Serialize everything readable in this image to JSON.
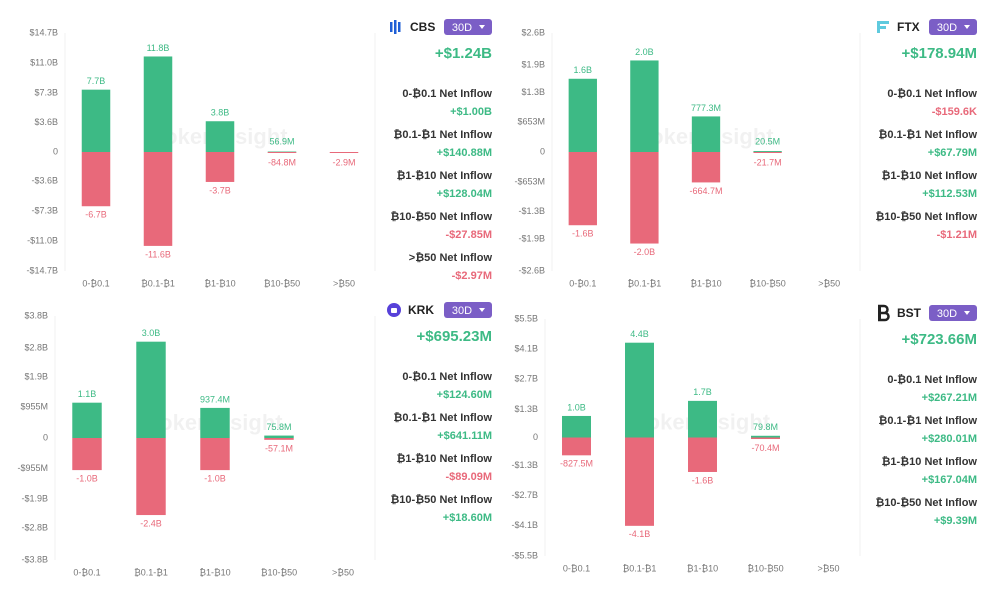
{
  "watermark": "TokenInsight",
  "chart_data": [
    {
      "type": "bar",
      "exchange": "CBS",
      "timeframe": "30D",
      "total": "+$1.24B",
      "items": [
        {
          "label": "0-₿0.1 Net Inflow",
          "value": "+$1.00B"
        },
        {
          "label": "₿0.1-₿1 Net Inflow",
          "value": "+$140.88M"
        },
        {
          "label": "₿1-₿10 Net Inflow",
          "value": "+$128.04M"
        },
        {
          "label": "₿10-₿50 Net Inflow",
          "value": "-$27.85M"
        },
        {
          "label": ">₿50 Net Inflow",
          "value": "-$2.97M"
        }
      ],
      "categories": [
        "0-₿0.1",
        "₿0.1-₿1",
        "₿1-₿10",
        "₿10-₿50",
        ">₿50"
      ],
      "series": [
        {
          "color": "#3dba85",
          "values": [
            7700000000,
            11800000000,
            3800000000,
            56900000,
            null
          ],
          "value_labels": [
            "7.7B",
            "11.8B",
            "3.8B",
            "56.9M",
            null
          ]
        },
        {
          "color": "#e8697a",
          "values": [
            -6700000000,
            -11600000000,
            -3700000000,
            -84800000,
            -2900000
          ],
          "value_labels": [
            "-6.7B",
            "-11.6B",
            "-3.7B",
            "-84.8M",
            "-2.9M"
          ]
        }
      ],
      "ylim": [
        -14700000000,
        14700000000
      ],
      "yticks": [
        {
          "value": 14700000000,
          "label": "$14.7B"
        },
        {
          "value": 11000000000,
          "label": "$11.0B"
        },
        {
          "value": 7300000000,
          "label": "$7.3B"
        },
        {
          "value": 3600000000,
          "label": "$3.6B"
        },
        0,
        {
          "value": -3600000000,
          "label": "-$3.6B"
        },
        {
          "value": -7300000000,
          "label": "-$7.3B"
        },
        {
          "value": -11000000000,
          "label": "-$11.0B"
        },
        {
          "value": -14700000000,
          "label": "-$14.7B"
        }
      ],
      "grid": false
    },
    {
      "type": "bar",
      "exchange": "FTX",
      "timeframe": "30D",
      "total": "+$178.94M",
      "items": [
        {
          "label": "0-₿0.1 Net Inflow",
          "value": "-$159.6K"
        },
        {
          "label": "₿0.1-₿1 Net Inflow",
          "value": "+$67.79M"
        },
        {
          "label": "₿1-₿10 Net Inflow",
          "value": "+$112.53M"
        },
        {
          "label": "₿10-₿50 Net Inflow",
          "value": "-$1.21M"
        }
      ],
      "categories": [
        "0-₿0.1",
        "₿0.1-₿1",
        "₿1-₿10",
        "₿10-₿50",
        ">₿50"
      ],
      "series": [
        {
          "color": "#3dba85",
          "values": [
            1600000000,
            2000000000,
            777300000,
            20500000,
            null
          ],
          "value_labels": [
            "1.6B",
            "2.0B",
            "777.3M",
            "20.5M",
            null
          ]
        },
        {
          "color": "#e8697a",
          "values": [
            -1600000000,
            -2000000000,
            -664700000,
            -21700000,
            null
          ],
          "value_labels": [
            "-1.6B",
            "-2.0B",
            "-664.7M",
            "-21.7M",
            null
          ]
        }
      ],
      "ylim": [
        -2600000000,
        2600000000
      ],
      "yticks": [
        {
          "value": 2600000000,
          "label": "$2.6B"
        },
        {
          "value": 1900000000,
          "label": "$1.9B"
        },
        {
          "value": 1300000000,
          "label": "$1.3B"
        },
        {
          "value": 653000000,
          "label": "$653M"
        },
        0,
        {
          "value": -653000000,
          "label": "-$653M"
        },
        {
          "value": -1300000000,
          "label": "-$1.3B"
        },
        {
          "value": -1900000000,
          "label": "-$1.9B"
        },
        {
          "value": -2600000000,
          "label": "-$2.6B"
        }
      ],
      "grid": false
    },
    {
      "type": "bar",
      "exchange": "KRK",
      "timeframe": "30D",
      "total": "+$695.23M",
      "items": [
        {
          "label": "0-₿0.1 Net Inflow",
          "value": "+$124.60M"
        },
        {
          "label": "₿0.1-₿1 Net Inflow",
          "value": "+$641.11M"
        },
        {
          "label": "₿1-₿10 Net Inflow",
          "value": "-$89.09M"
        },
        {
          "label": "₿10-₿50 Net Inflow",
          "value": "+$18.60M"
        }
      ],
      "categories": [
        "0-₿0.1",
        "₿0.1-₿1",
        "₿1-₿10",
        "₿10-₿50",
        ">₿50"
      ],
      "series": [
        {
          "color": "#3dba85",
          "values": [
            1100000000,
            3000000000,
            937400000,
            75800000,
            null
          ],
          "value_labels": [
            "1.1B",
            "3.0B",
            "937.4M",
            "75.8M",
            null
          ]
        },
        {
          "color": "#e8697a",
          "values": [
            -1000000000,
            -2400000000,
            -1000000000,
            -57100000,
            null
          ],
          "value_labels": [
            "-1.0B",
            "-2.4B",
            "-1.0B",
            "-57.1M",
            null
          ]
        }
      ],
      "ylim": [
        -3800000000,
        3800000000
      ],
      "yticks": [
        {
          "value": 3800000000,
          "label": "$3.8B"
        },
        {
          "value": 2800000000,
          "label": "$2.8B"
        },
        {
          "value": 1900000000,
          "label": "$1.9B"
        },
        {
          "value": 955000000,
          "label": "$955M"
        },
        0,
        {
          "value": -955000000,
          "label": "-$955M"
        },
        {
          "value": -1900000000,
          "label": "-$1.9B"
        },
        {
          "value": -2800000000,
          "label": "-$2.8B"
        },
        {
          "value": -3800000000,
          "label": "-$3.8B"
        }
      ],
      "grid": false
    },
    {
      "type": "bar",
      "exchange": "BST",
      "timeframe": "30D",
      "total": "+$723.66M",
      "items": [
        {
          "label": "0-₿0.1 Net Inflow",
          "value": "+$267.21M"
        },
        {
          "label": "₿0.1-₿1 Net Inflow",
          "value": "+$280.01M"
        },
        {
          "label": "₿1-₿10 Net Inflow",
          "value": "+$167.04M"
        },
        {
          "label": "₿10-₿50 Net Inflow",
          "value": "+$9.39M"
        }
      ],
      "categories": [
        "0-₿0.1",
        "₿0.1-₿1",
        "₿1-₿10",
        "₿10-₿50",
        ">₿50"
      ],
      "series": [
        {
          "color": "#3dba85",
          "values": [
            1000000000,
            4400000000,
            1700000000,
            79800000,
            null
          ],
          "value_labels": [
            "1.0B",
            "4.4B",
            "1.7B",
            "79.8M",
            null
          ]
        },
        {
          "color": "#e8697a",
          "values": [
            -827500000,
            -4100000000,
            -1600000000,
            -70400000,
            null
          ],
          "value_labels": [
            "-827.5M",
            "-4.1B",
            "-1.6B",
            "-70.4M",
            null
          ]
        }
      ],
      "ylim": [
        -5500000000,
        5500000000
      ],
      "yticks": [
        {
          "value": 5500000000,
          "label": "$5.5B"
        },
        {
          "value": 4100000000,
          "label": "$4.1B"
        },
        {
          "value": 2700000000,
          "label": "$2.7B"
        },
        {
          "value": 1300000000,
          "label": "$1.3B"
        },
        0,
        {
          "value": -1300000000,
          "label": "-$1.3B"
        },
        {
          "value": -2700000000,
          "label": "-$2.7B"
        },
        {
          "value": -4100000000,
          "label": "-$4.1B"
        },
        {
          "value": -5500000000,
          "label": "-$5.5B"
        }
      ],
      "grid": false
    }
  ]
}
